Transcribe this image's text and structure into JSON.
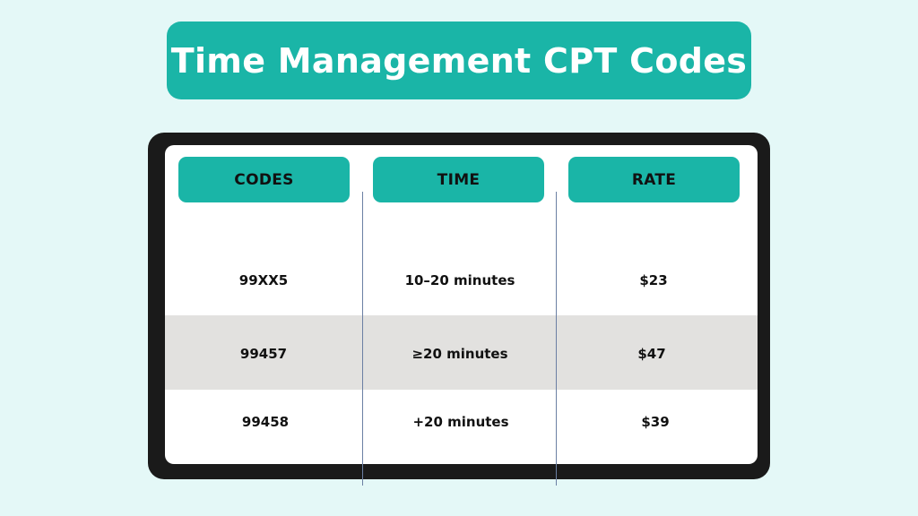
{
  "title": "Time Management CPT Codes",
  "table": {
    "headers": [
      "CODES",
      "TIME",
      "RATE"
    ],
    "rows": [
      {
        "code": "99XX5",
        "time": "10–20 minutes",
        "rate": "$23"
      },
      {
        "code": "99457",
        "time": "≥20 minutes",
        "rate": "$47"
      },
      {
        "code": "99458",
        "time": "+20 minutes",
        "rate": "$39"
      }
    ]
  },
  "colors": {
    "background": "#e4f8f7",
    "accent": "#1ab5a7",
    "frame": "#1a1a1a",
    "shaded_row": "#e2e1df",
    "divider": "#6b7fa3"
  }
}
